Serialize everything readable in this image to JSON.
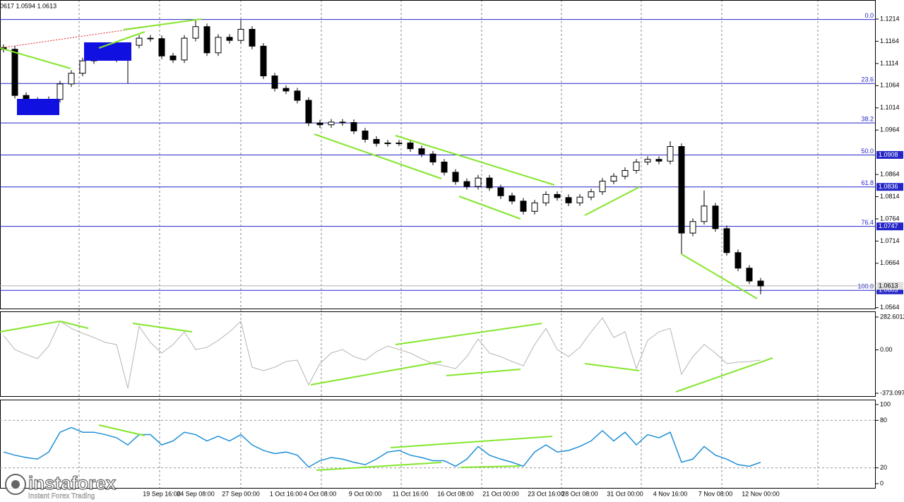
{
  "chart_data": [
    {
      "type": "candlestick",
      "title": "0617 1.0594 1.0613",
      "categories": [
        null,
        null,
        null,
        null,
        null,
        null,
        null,
        null,
        null,
        null,
        null,
        null,
        null,
        null,
        "19 Sep 16:00",
        null,
        null,
        "24 Sep 08:00",
        null,
        null,
        null,
        "27 Sep 00:00",
        null,
        null,
        null,
        "1 Oct 16:00",
        null,
        null,
        "4 Oct 08:00",
        null,
        null,
        null,
        "9 Oct 00:00",
        null,
        null,
        null,
        "11 Oct 16:00",
        null,
        null,
        null,
        "16 Oct 08:00",
        null,
        null,
        null,
        "21 Oct 00:00",
        null,
        null,
        null,
        "23 Oct 16:00",
        null,
        null,
        "28 Oct 08:00",
        null,
        null,
        null,
        "31 Oct 00:00",
        null,
        null,
        null,
        "4 Nov 16:00",
        null,
        null,
        null,
        "7 Nov 08:00",
        null,
        null,
        null,
        "12 Nov 00:00"
      ],
      "open": [
        1.115,
        1.1146,
        1.1042,
        1.1031,
        1.1022,
        1.1033,
        1.1068,
        1.1092,
        1.112,
        1.1128,
        1.1127,
        1.1124,
        1.1155,
        1.1171,
        1.117,
        1.1131,
        1.1122,
        1.1171,
        1.1197,
        1.1138,
        1.1173,
        1.1166,
        1.1191,
        1.1153,
        1.1086,
        1.1058,
        1.1052,
        1.1031,
        1.098,
        1.0976,
        1.0982,
        1.0981,
        1.0962,
        1.0943,
        1.0934,
        1.0935,
        1.0935,
        1.0922,
        1.091,
        1.0892,
        1.0869,
        1.0848,
        1.0837,
        1.0856,
        1.0834,
        1.0816,
        1.0804,
        1.0781,
        1.08,
        1.0819,
        1.0812,
        1.08,
        1.0813,
        1.0825,
        1.0849,
        1.086,
        1.0873,
        1.0892,
        1.0898,
        1.0894,
        1.0927,
        1.0732,
        1.0758,
        1.0793,
        1.0742,
        1.0688,
        1.0653,
        1.0624
      ],
      "high": [
        1.1157,
        1.1153,
        1.1049,
        1.1038,
        1.104,
        1.1075,
        1.1099,
        1.1127,
        1.1135,
        1.1135,
        1.1134,
        1.1162,
        1.1178,
        1.1178,
        1.1177,
        1.1138,
        1.1178,
        1.1213,
        1.1204,
        1.118,
        1.118,
        1.1212,
        1.1198,
        1.116,
        1.1093,
        1.1065,
        1.1059,
        1.1038,
        1.0987,
        1.0989,
        1.0989,
        1.0988,
        1.0969,
        1.095,
        1.0942,
        1.0942,
        1.0942,
        1.0929,
        1.0917,
        1.0899,
        1.0876,
        1.0855,
        1.0863,
        1.0863,
        1.0841,
        1.0823,
        1.0811,
        1.0807,
        1.0826,
        1.0826,
        1.0819,
        1.082,
        1.0832,
        1.0856,
        1.0867,
        1.088,
        1.0899,
        1.0905,
        1.0905,
        1.0939,
        1.0934,
        1.0765,
        1.0828,
        1.08,
        1.0749,
        1.0695,
        1.066,
        1.0631
      ],
      "low": [
        1.1139,
        1.1035,
        1.1024,
        1.1015,
        1.1015,
        1.1026,
        1.1061,
        1.1085,
        1.1113,
        1.112,
        1.1117,
        1.1069,
        1.1148,
        1.1163,
        1.1124,
        1.1115,
        1.1115,
        1.1164,
        1.1131,
        1.1131,
        1.1159,
        1.1159,
        1.1146,
        1.1079,
        1.1051,
        1.1045,
        1.1024,
        1.0973,
        1.0969,
        1.0969,
        1.0974,
        1.0955,
        1.0936,
        1.0927,
        1.0927,
        1.0928,
        1.0915,
        1.0903,
        1.0885,
        1.0862,
        1.0841,
        1.083,
        1.083,
        1.0827,
        1.0809,
        1.0797,
        1.0774,
        1.0774,
        1.0793,
        1.0805,
        1.0793,
        1.0793,
        1.0806,
        1.0818,
        1.0842,
        1.0853,
        1.0866,
        1.0885,
        1.0887,
        1.0887,
        1.0685,
        1.0725,
        1.0751,
        1.0735,
        1.0681,
        1.0646,
        1.0617,
        1.0594
      ],
      "close": [
        1.1146,
        1.1042,
        1.1031,
        1.1022,
        1.1033,
        1.1068,
        1.1092,
        1.112,
        1.1128,
        1.1127,
        1.1124,
        1.1155,
        1.1171,
        1.117,
        1.1131,
        1.1122,
        1.1171,
        1.1197,
        1.1138,
        1.1173,
        1.1166,
        1.1191,
        1.1153,
        1.1086,
        1.1058,
        1.1052,
        1.1031,
        1.098,
        1.0976,
        1.0982,
        1.0981,
        1.0962,
        1.0943,
        1.0934,
        1.0935,
        1.0935,
        1.0922,
        1.091,
        1.0892,
        1.0869,
        1.0848,
        1.0837,
        1.0856,
        1.0834,
        1.0816,
        1.0804,
        1.0781,
        1.08,
        1.0819,
        1.0812,
        1.08,
        1.0813,
        1.0825,
        1.0849,
        1.086,
        1.0873,
        1.0892,
        1.0898,
        1.0894,
        1.0927,
        1.0732,
        1.0758,
        1.0793,
        1.0742,
        1.0688,
        1.0653,
        1.0624,
        1.0613
      ],
      "ylim": [
        1.0562,
        1.1257
      ],
      "yticks": [
        1.1214,
        1.1164,
        1.1114,
        1.1064,
        1.1014,
        1.0964,
        1.0864,
        1.0814,
        1.0764,
        1.0714,
        1.0664,
        1.0564
      ],
      "fib_levels": [
        {
          "label": "0.0",
          "value": 1.1213,
          "tag": false
        },
        {
          "label": "23.6",
          "value": 1.1069,
          "tag": false
        },
        {
          "label": "38.2",
          "value": 1.098,
          "tag": false
        },
        {
          "label": "50.0",
          "value": 1.0908,
          "tag": true
        },
        {
          "label": "61.8",
          "value": 1.0836,
          "tag": true
        },
        {
          "label": "76.4",
          "value": 1.0747,
          "tag": true
        },
        {
          "label": "100.0",
          "value": 1.0603,
          "tag": true
        }
      ],
      "current_price": 1.0613,
      "fib_color": "#2424c8",
      "up_color": "#ffffff",
      "down_color": "#000000"
    },
    {
      "type": "line",
      "color": "#b4b4b4",
      "values": [
        124,
        3,
        -39,
        -76,
        33,
        246,
        185,
        143,
        106,
        64,
        46,
        -331,
        203,
        64,
        -27,
        46,
        155,
        3,
        21,
        82,
        155,
        246,
        -149,
        -179,
        -149,
        -100,
        -88,
        -301,
        -118,
        -27,
        3,
        -58,
        -88,
        -15,
        33,
        3,
        -27,
        -76,
        -118,
        -137,
        -161,
        -58,
        94,
        -27,
        -58,
        -100,
        -137,
        46,
        185,
        3,
        -58,
        21,
        155,
        276,
        106,
        155,
        -161,
        82,
        155,
        185,
        -209,
        -58,
        46,
        -27,
        -118,
        -106,
        -100,
        -88
      ],
      "ylim": [
        -403.5,
        331.2
      ],
      "yticks": [
        282.6012,
        {
          "value": 0,
          "label": "0.00"
        },
        -373.0978
      ]
    },
    {
      "type": "line",
      "color": "#1f8fd6",
      "values": [
        40,
        36,
        33,
        31,
        40,
        65,
        71,
        65,
        65,
        62,
        58,
        49,
        62,
        62,
        49,
        54,
        65,
        62,
        54,
        60,
        54,
        62,
        49,
        42,
        38,
        40,
        36,
        21,
        29,
        33,
        31,
        27,
        24,
        31,
        40,
        42,
        36,
        33,
        29,
        29,
        22,
        31,
        47,
        36,
        31,
        27,
        22,
        40,
        49,
        40,
        42,
        47,
        54,
        67,
        54,
        65,
        49,
        62,
        58,
        65,
        27,
        31,
        47,
        36,
        31,
        24,
        22,
        27
      ],
      "ylim": [
        -6.25,
        106.25
      ],
      "yticks": [
        100,
        80,
        20,
        0
      ],
      "levels": [
        80,
        20
      ]
    }
  ],
  "watermark": {
    "brand": "instaforex",
    "tagline": "Instant Forex Trading"
  }
}
